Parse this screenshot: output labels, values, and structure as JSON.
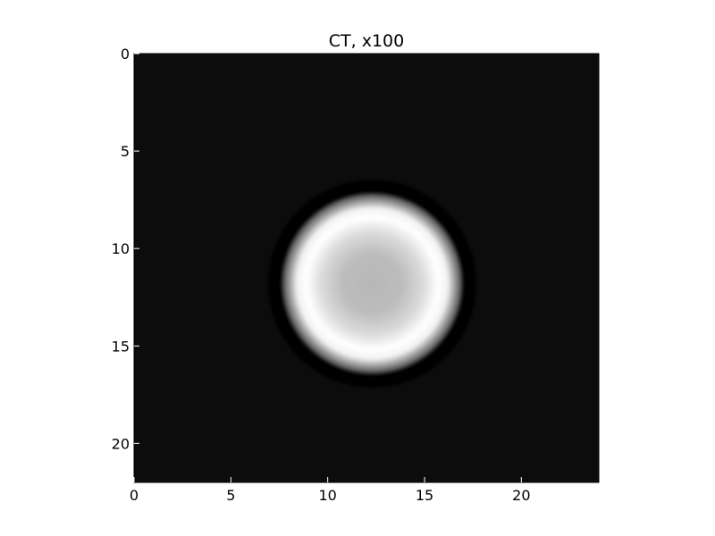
{
  "chart_data": {
    "type": "heatmap",
    "title": "CT, x100",
    "xlabel": "",
    "ylabel": "",
    "xlim": [
      0,
      24
    ],
    "ylim": [
      22,
      0
    ],
    "x_ticks": [
      0,
      5,
      10,
      15,
      20
    ],
    "y_ticks": [
      0,
      5,
      10,
      15,
      20
    ],
    "x_tick_labels": [
      "0",
      "5",
      "10",
      "15",
      "20"
    ],
    "y_tick_labels": [
      "0",
      "5",
      "10",
      "15",
      "20"
    ],
    "colormap": "gray",
    "grid": false,
    "background_value": 0.05,
    "features": [
      {
        "shape": "ring",
        "center_x": 12.3,
        "center_y": 11.8,
        "radius": 3.05,
        "width": 1.2,
        "peak_value": 1.0
      },
      {
        "shape": "disk",
        "center_x": 12.3,
        "center_y": 11.8,
        "radius": 2.3,
        "value": 0.7
      }
    ],
    "colors": {
      "min": "#000000",
      "max": "#ffffff"
    }
  }
}
